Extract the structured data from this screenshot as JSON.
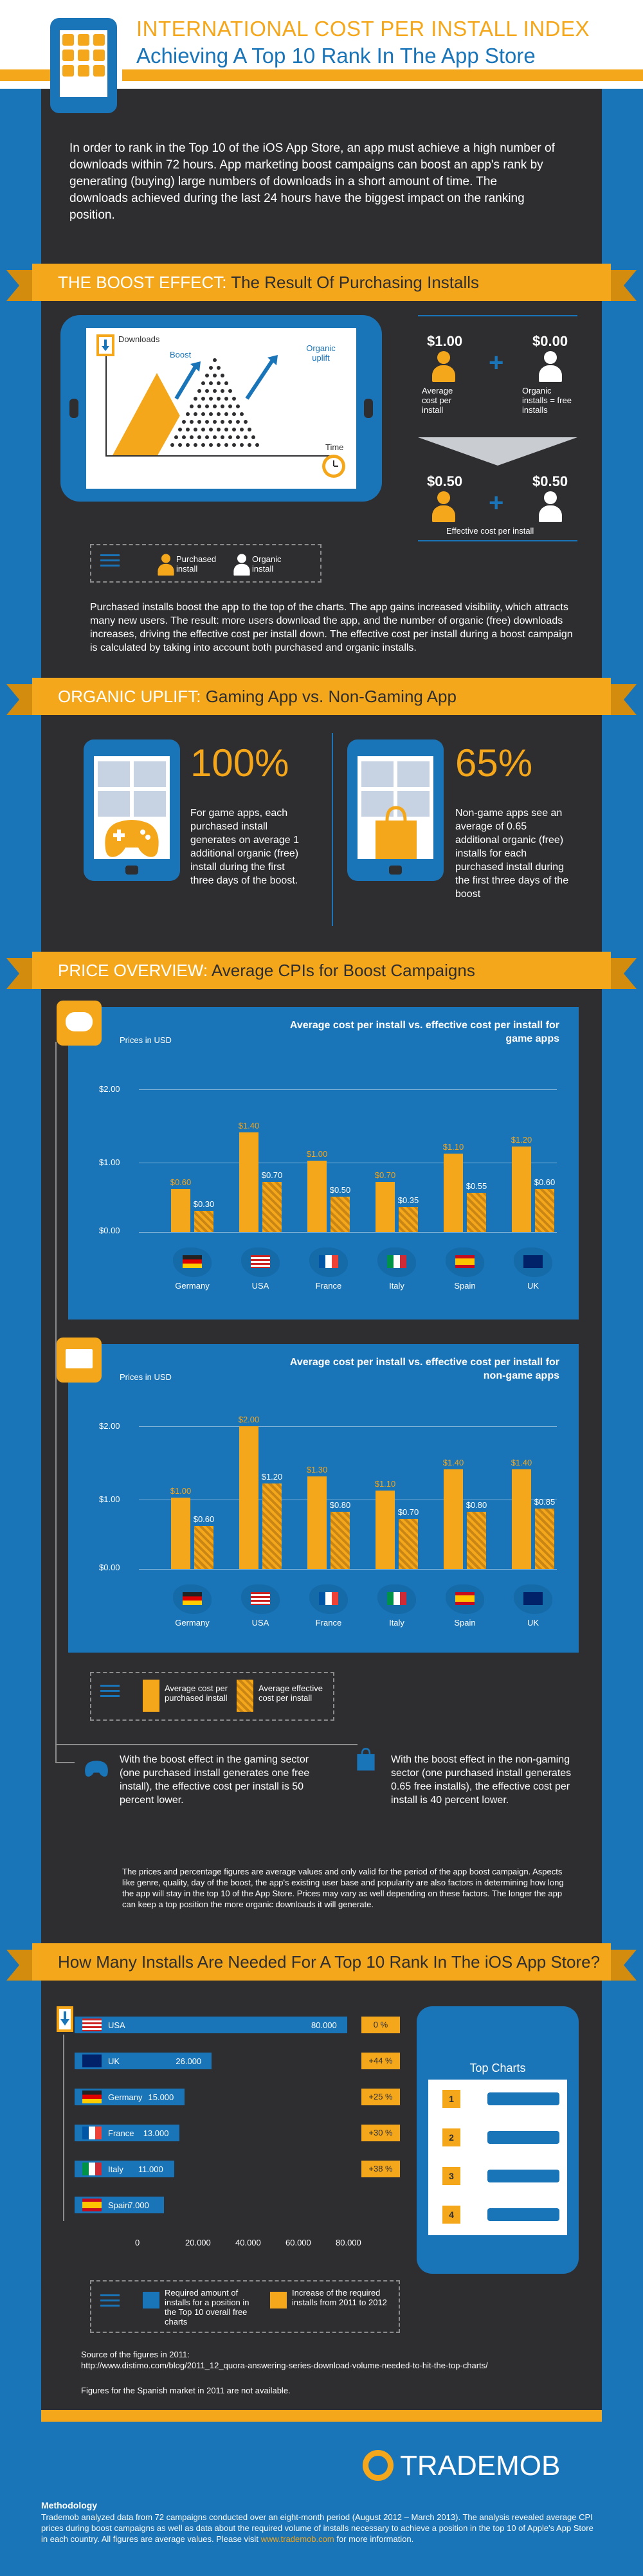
{
  "header": {
    "title": "INTERNATIONAL COST PER INSTALL INDEX",
    "subtitle": "Achieving A Top 10 Rank In The App Store"
  },
  "intro": "In order to rank in the Top 10 of the iOS App Store, an app must achieve a high number of downloads within 72 hours. App marketing boost campaigns can boost an app's rank by generating (buying) large numbers of downloads in a short amount of time. The downloads achieved during the last 24 hours have the biggest impact on the ranking position.",
  "boost": {
    "banner_em": "THE BOOST EFFECT:",
    "banner_rest": " The Result Of Purchasing Installs",
    "downloads_label": "Downloads",
    "boost_label": "Boost",
    "organic_label": "Organic uplift",
    "time_label": "Time",
    "legend_purchased": "Purchased install",
    "legend_organic": "Organic install",
    "price_paid": "$1.00",
    "price_free": "$0.00",
    "avg_label": "Average cost per install",
    "organic_free_label": "Organic installs = free installs",
    "eff_left": "$0.50",
    "eff_right": "$0.50",
    "eff_label": "Effective cost per install",
    "paragraph": "Purchased installs boost the app to the top of the charts. The app gains increased visibility, which attracts many new users. The result: more users download the app, and the number of organic (free) downloads increases, driving the effective cost per install down. The effective cost per install during a boost campaign is calculated by taking into account both purchased and organic installs."
  },
  "organic": {
    "banner_em": "ORGANIC UPLIFT:",
    "banner_rest": " Gaming App vs. Non-Gaming App",
    "game_pct": "100%",
    "game_text": "For game apps, each purchased install generates on average 1 additional organic (free) install during the first three days of the boost.",
    "nongame_pct": "65%",
    "nongame_text": "Non-game apps see an average of 0.65 additional organic (free) installs for each purchased install during the first three days of the boost"
  },
  "price": {
    "banner_em": "PRICE OVERVIEW:",
    "banner_rest": " Average CPIs for Boost Campaigns",
    "legend_avg": "Average cost per purchased install",
    "legend_eff": "Average effective cost per install",
    "game_note": "With the boost effect in the gaming sector (one purchased install generates one free install), the effective cost per install is 50 percent lower.",
    "nongame_note": "With the boost effect in the non-gaming sector (one purchased install generates 0.65 free installs), the effective cost per install is 40 percent lower.",
    "disclaimer": "The prices and percentage figures are average values and only valid for the period of the app boost campaign. Aspects like genre, quality, day of the boost, the app's existing user base and popularity are also factors in determining how long the app will stay in the top 10 of the App Store. Prices may vary as well depending on these factors. The longer the app can keep a top position the more organic downloads it will generate."
  },
  "chart_data": [
    {
      "type": "bar",
      "title": "Average cost per install vs. effective cost per install for game apps",
      "ylabel": "Prices in USD",
      "yticks": [
        "$2.00",
        "$1.00",
        "$0.00"
      ],
      "ylim": [
        0,
        2
      ],
      "categories": [
        "Germany",
        "USA",
        "France",
        "Italy",
        "Spain",
        "UK"
      ],
      "series": [
        {
          "values": [
            0.6,
            1.4,
            1.0,
            0.7,
            1.1,
            1.2
          ],
          "labels": [
            "$0.60",
            "$1.40",
            "$1.00",
            "$0.70",
            "$1.10",
            "$1.20"
          ]
        },
        {
          "values": [
            0.3,
            0.7,
            0.5,
            0.35,
            0.55,
            0.6
          ],
          "labels": [
            "$0.30",
            "$0.70",
            "$0.50",
            "$0.35",
            "$0.55",
            "$0.60"
          ]
        }
      ]
    },
    {
      "type": "bar",
      "title": "Average cost per install vs. effective cost per install for non-game apps",
      "ylabel": "Prices in USD",
      "yticks": [
        "$2.00",
        "$1.00",
        "$0.00"
      ],
      "ylim": [
        0,
        2
      ],
      "categories": [
        "Germany",
        "USA",
        "France",
        "Italy",
        "Spain",
        "UK"
      ],
      "series": [
        {
          "values": [
            1.0,
            2.0,
            1.3,
            1.1,
            1.4,
            1.4
          ],
          "labels": [
            "$1.00",
            "$2.00",
            "$1.30",
            "$1.10",
            "$1.40",
            "$1.40"
          ]
        },
        {
          "values": [
            0.6,
            1.2,
            0.8,
            0.7,
            0.8,
            0.85
          ],
          "labels": [
            "$0.60",
            "$1.20",
            "$0.80",
            "$0.70",
            "$0.80",
            "$0.85"
          ]
        }
      ]
    },
    {
      "type": "bar",
      "title": "How Many Installs Are Needed For A Top 10 Rank In The iOS App Store?",
      "categories": [
        "USA",
        "UK",
        "Germany",
        "France",
        "Italy",
        "Spain"
      ],
      "values": [
        80000,
        26000,
        15000,
        13000,
        11000,
        7000
      ],
      "value_labels": [
        "80.000",
        "26.000",
        "15.000",
        "13.000",
        "11.000",
        "7.000"
      ],
      "increase_labels": [
        "0 %",
        "+44 %",
        "+25 %",
        "+30 %",
        "+38 %",
        ""
      ],
      "xticks": [
        "0",
        "20.000",
        "40.000",
        "60.000",
        "80.000"
      ],
      "xlim": [
        0,
        80000
      ]
    }
  ],
  "installs": {
    "banner": "How Many Installs Are Needed For A Top 10 Rank In The iOS App Store?",
    "top_charts": "Top Charts",
    "top_nums": [
      "1",
      "2",
      "3",
      "4"
    ],
    "legend_required": "Required amount of installs for a position in the Top 10 overall free charts",
    "legend_increase": "Increase of the required installs from 2011 to 2012",
    "source_title": "Source of the figures in 2011:",
    "source_url": "http://www.distimo.com/blog/2011_12_quora-answering-series-download-volume-needed-to-hit-the-top-charts/",
    "spain_note": "Figures for the Spanish market in 2011 are not available."
  },
  "footer": {
    "logo": "TRADEMOB",
    "meth_title": "Methodology",
    "meth_text": "Trademob analyzed data from 72 campaigns conducted over an eight-month period (August 2012 – March 2013). The analysis revealed average CPI prices during boost campaigns as well as data about the required volume of installs necessary to achieve a position in the top 10 of Apple's App Store in each country. All figures are average values. Please visit ",
    "meth_link": "www.trademob.com",
    "meth_end": " for more information."
  },
  "colors": {
    "accent": "#f5a71c",
    "brand": "#1a74b8",
    "dark": "#2e2e30"
  }
}
